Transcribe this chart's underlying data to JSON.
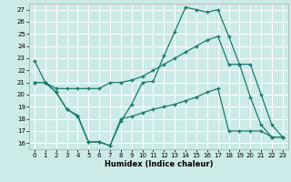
{
  "xlabel": "Humidex (Indice chaleur)",
  "ylabel": "",
  "bg_color": "#cceae8",
  "grid_color": "#ffffff",
  "line_color": "#1a7a6e",
  "xlim": [
    -0.5,
    23.5
  ],
  "ylim": [
    15.5,
    27.5
  ],
  "xticks": [
    0,
    1,
    2,
    3,
    4,
    5,
    6,
    7,
    8,
    9,
    10,
    11,
    12,
    13,
    14,
    15,
    16,
    17,
    18,
    19,
    20,
    21,
    22,
    23
  ],
  "yticks": [
    16,
    17,
    18,
    19,
    20,
    21,
    22,
    23,
    24,
    25,
    26,
    27
  ],
  "line1_x": [
    0,
    1,
    2,
    3,
    4,
    5,
    6,
    7,
    8,
    9,
    10,
    11,
    12,
    13,
    14,
    15,
    16,
    17,
    18,
    19,
    20,
    21,
    22,
    23
  ],
  "line1_y": [
    22.8,
    21.0,
    20.2,
    18.8,
    18.2,
    16.1,
    16.1,
    15.8,
    17.8,
    19.2,
    21.0,
    21.1,
    23.2,
    25.2,
    27.2,
    27.0,
    26.8,
    27.0,
    24.8,
    22.5,
    19.8,
    17.5,
    16.5,
    16.5
  ],
  "line2_x": [
    0,
    1,
    2,
    3,
    4,
    5,
    6,
    7,
    8,
    9,
    10,
    11,
    12,
    13,
    14,
    15,
    16,
    17,
    18,
    19,
    20,
    21,
    22,
    23
  ],
  "line2_y": [
    21.0,
    21.0,
    20.5,
    20.5,
    20.5,
    20.5,
    20.5,
    21.0,
    21.0,
    21.2,
    21.5,
    22.0,
    22.5,
    23.0,
    23.5,
    24.0,
    24.5,
    24.8,
    22.5,
    22.5,
    22.5,
    20.0,
    17.5,
    16.5
  ],
  "line3_x": [
    0,
    1,
    2,
    3,
    4,
    5,
    6,
    7,
    8,
    9,
    10,
    11,
    12,
    13,
    14,
    15,
    16,
    17,
    18,
    19,
    20,
    21,
    22,
    23
  ],
  "line3_y": [
    21.0,
    21.0,
    20.2,
    18.8,
    18.3,
    16.1,
    16.1,
    15.8,
    18.0,
    18.2,
    18.5,
    18.8,
    19.0,
    19.2,
    19.5,
    19.8,
    20.2,
    20.5,
    17.0,
    17.0,
    17.0,
    17.0,
    16.5,
    16.5
  ],
  "marker": "+",
  "markersize": 3,
  "linewidth": 0.9
}
